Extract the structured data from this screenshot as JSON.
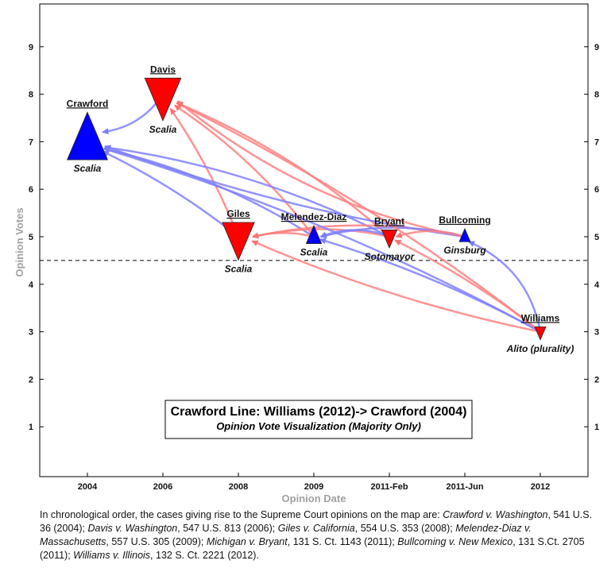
{
  "chart_data": {
    "type": "network",
    "title": "Crawford Line: Williams (2012)-> Crawford (2004)",
    "subtitle": "Opinion Vote Visualization (Majority Only)",
    "xlabel": "Opinion Date",
    "ylabel": "Opinion Votes",
    "x_categories": [
      "2004",
      "2006",
      "2008",
      "2009",
      "2011-Feb",
      "2011-Jun",
      "2012"
    ],
    "y_ticks": [
      1,
      2,
      3,
      4,
      5,
      6,
      7,
      8,
      9
    ],
    "ylim": [
      -0.05,
      9.9
    ],
    "threshold": 4.5,
    "colors": {
      "affirm": "#0000ff",
      "reverse": "#ff0000",
      "affirm_edge": "#8080ff",
      "reverse_edge": "#ff8080"
    },
    "nodes": [
      {
        "id": "crawford",
        "case": "Crawford",
        "x": "2004",
        "votes": 7,
        "author": "Scalia",
        "color": "blue",
        "direction": "up",
        "size": 9
      },
      {
        "id": "davis",
        "case": "Davis",
        "x": "2006",
        "votes": 8,
        "author": "Scalia",
        "color": "red",
        "direction": "down",
        "size": 8
      },
      {
        "id": "giles",
        "case": "Giles",
        "x": "2008",
        "votes": 5,
        "author": "Scalia",
        "color": "red",
        "direction": "down",
        "size": 7
      },
      {
        "id": "melendez",
        "case": "Melendez-Diaz",
        "x": "2009",
        "votes": 5,
        "author": "Scalia",
        "color": "blue",
        "direction": "up",
        "size": 3
      },
      {
        "id": "bryant",
        "case": "Bryant",
        "x": "2011-Feb",
        "votes": 5,
        "author": "Sotomayor",
        "color": "red",
        "direction": "down",
        "size": 3
      },
      {
        "id": "bullcoming",
        "case": "Bullcoming",
        "x": "2011-Jun",
        "votes": 5,
        "author": "Ginsburg",
        "color": "blue",
        "direction": "up",
        "size": 2
      },
      {
        "id": "williams",
        "case": "Williams",
        "x": "2012",
        "votes": 3,
        "author": "Alito (plurality)",
        "color": "red",
        "direction": "down",
        "size": 2
      }
    ],
    "edges": [
      {
        "from": "davis",
        "to": "crawford",
        "color": "blue",
        "bend": -0.18
      },
      {
        "from": "giles",
        "to": "crawford",
        "color": "blue",
        "bend": 0.05
      },
      {
        "from": "giles",
        "to": "davis",
        "color": "red",
        "bend": 0.05
      },
      {
        "from": "melendez",
        "to": "crawford",
        "color": "blue",
        "bend": 0.08
      },
      {
        "from": "melendez",
        "to": "davis",
        "color": "red",
        "bend": 0.08
      },
      {
        "from": "melendez",
        "to": "giles",
        "color": "red",
        "bend": 0.1
      },
      {
        "from": "bryant",
        "to": "crawford",
        "color": "blue",
        "bend": 0.08
      },
      {
        "from": "bryant",
        "to": "davis",
        "color": "red",
        "bend": 0.08
      },
      {
        "from": "bryant",
        "to": "giles",
        "color": "red",
        "bend": 0.1
      },
      {
        "from": "bryant",
        "to": "melendez",
        "color": "blue",
        "bend": 0.18
      },
      {
        "from": "bullcoming",
        "to": "crawford",
        "color": "blue",
        "bend": -0.05
      },
      {
        "from": "bullcoming",
        "to": "davis",
        "color": "red",
        "bend": -0.12
      },
      {
        "from": "bullcoming",
        "to": "giles",
        "color": "red",
        "bend": 0.1
      },
      {
        "from": "bullcoming",
        "to": "melendez",
        "color": "blue",
        "bend": 0.12
      },
      {
        "from": "bullcoming",
        "to": "bryant",
        "color": "red",
        "bend": 0.15
      },
      {
        "from": "williams",
        "to": "crawford",
        "color": "blue",
        "bend": 0.05
      },
      {
        "from": "williams",
        "to": "davis",
        "color": "red",
        "bend": 0.05
      },
      {
        "from": "williams",
        "to": "giles",
        "color": "red",
        "bend": -0.05
      },
      {
        "from": "williams",
        "to": "melendez",
        "color": "blue",
        "bend": 0.05
      },
      {
        "from": "williams",
        "to": "bryant",
        "color": "red",
        "bend": 0.05
      },
      {
        "from": "williams",
        "to": "bullcoming",
        "color": "blue",
        "bend": 0.25
      }
    ]
  },
  "caption": {
    "intro": "In chronological order, the cases giving rise to the Supreme Court opinions on the map are: ",
    "cases": [
      {
        "name": "Crawford v. Washington",
        "cite": ", 541 U.S. 36 (2004); "
      },
      {
        "name": "Davis v. Washington",
        "cite": ", 547 U.S. 813 (2006); "
      },
      {
        "name": "Giles v. California",
        "cite": ", 554 U.S. 353 (2008); "
      },
      {
        "name": "Melendez-Diaz v. Massachusetts",
        "cite": ", 557 U.S. 305 (2009); "
      },
      {
        "name": "Michigan v. Bryant",
        "cite": ", 131 S. Ct. 1143 (2011); "
      },
      {
        "name": "Bullcoming v. New Mexico",
        "cite": ", 131 S.Ct. 2705 (2011); "
      },
      {
        "name": "Williams v. Illinois",
        "cite": ", 132 S. Ct. 2221 (2012)."
      }
    ]
  }
}
